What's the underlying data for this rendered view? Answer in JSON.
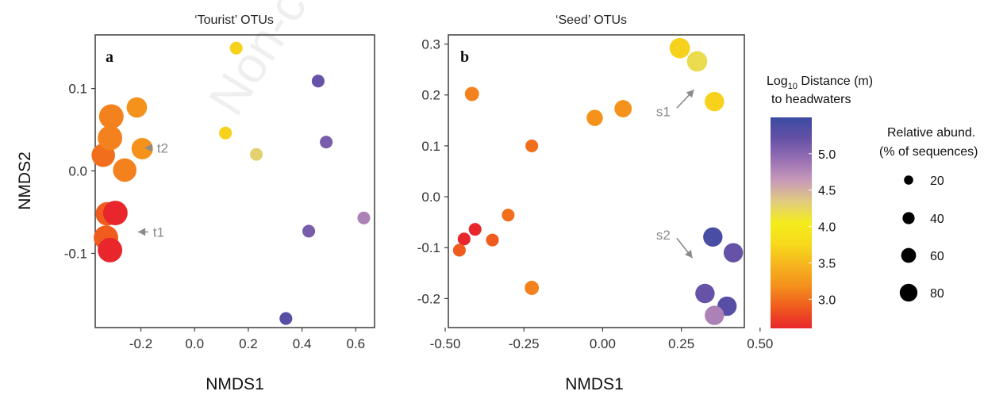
{
  "chart_data": [
    {
      "type": "scatter",
      "panel": "a",
      "title": "‘Tourist’ OTUs",
      "xlabel": "NMDS1",
      "ylabel": "NMDS2",
      "xlim": [
        -0.37,
        0.67
      ],
      "ylim": [
        -0.19,
        0.165
      ],
      "xticks": [
        -0.2,
        0.0,
        0.2,
        0.4,
        0.6
      ],
      "xtick_labels": [
        "-0.2",
        "0.0",
        "0.2",
        "0.4",
        "0.6"
      ],
      "yticks": [
        -0.1,
        0.0,
        0.1
      ],
      "ytick_labels": [
        "-0.1",
        "0.0",
        "0.1"
      ],
      "points": [
        {
          "x": 0.155,
          "y": 0.149,
          "log10_distance": 3.7,
          "abund": 8
        },
        {
          "x": 0.46,
          "y": 0.109,
          "log10_distance": 5.2,
          "abund": 8
        },
        {
          "x": 0.115,
          "y": 0.046,
          "log10_distance": 3.7,
          "abund": 8
        },
        {
          "x": 0.23,
          "y": 0.02,
          "log10_distance": 4.3,
          "abund": 8
        },
        {
          "x": 0.49,
          "y": 0.035,
          "log10_distance": 5.1,
          "abund": 8
        },
        {
          "x": 0.63,
          "y": -0.057,
          "log10_distance": 4.8,
          "abund": 8
        },
        {
          "x": 0.425,
          "y": -0.073,
          "log10_distance": 5.1,
          "abund": 8
        },
        {
          "x": 0.34,
          "y": -0.179,
          "log10_distance": 5.3,
          "abund": 8
        },
        {
          "x": -0.215,
          "y": 0.077,
          "log10_distance": 3.2,
          "abund": 45
        },
        {
          "x": -0.31,
          "y": 0.066,
          "log10_distance": 3.1,
          "abund": 65
        },
        {
          "x": -0.315,
          "y": 0.04,
          "log10_distance": 3.1,
          "abund": 65
        },
        {
          "x": -0.195,
          "y": 0.027,
          "log10_distance": 3.2,
          "abund": 50
        },
        {
          "x": -0.34,
          "y": 0.019,
          "log10_distance": 3.0,
          "abund": 60
        },
        {
          "x": -0.26,
          "y": 0.001,
          "log10_distance": 3.1,
          "abund": 60
        },
        {
          "x": -0.325,
          "y": -0.052,
          "log10_distance": 2.9,
          "abund": 60
        },
        {
          "x": -0.295,
          "y": -0.051,
          "log10_distance": 2.6,
          "abund": 65
        },
        {
          "x": -0.33,
          "y": -0.081,
          "log10_distance": 2.9,
          "abund": 65
        },
        {
          "x": -0.315,
          "y": -0.096,
          "log10_distance": 2.6,
          "abund": 65
        }
      ],
      "annotations": [
        {
          "label": "t2",
          "x": -0.14,
          "y": 0.028,
          "arrow_to_x": -0.185,
          "arrow_to_y": 0.028
        },
        {
          "label": "t1",
          "x": -0.155,
          "y": -0.074,
          "arrow_to_x": -0.21,
          "arrow_to_y": -0.074
        }
      ]
    },
    {
      "type": "scatter",
      "panel": "b",
      "title": "‘Seed’ OTUs",
      "xlabel": "NMDS1",
      "ylabel": "",
      "xlim": [
        -0.49,
        0.45
      ],
      "ylim": [
        -0.257,
        0.318
      ],
      "xticks": [
        -0.5,
        -0.25,
        0.0,
        0.25,
        0.5
      ],
      "xtick_labels": [
        "-0.50",
        "-0.25",
        "0.00",
        "0.25",
        "0.50"
      ],
      "yticks": [
        -0.2,
        -0.1,
        0.0,
        0.1,
        0.2,
        0.3
      ],
      "ytick_labels": [
        "-0.2",
        "-0.1",
        "0.0",
        "0.1",
        "0.2",
        "0.3"
      ],
      "points": [
        {
          "x": -0.415,
          "y": 0.202,
          "log10_distance": 3.1,
          "abund": 15
        },
        {
          "x": -0.025,
          "y": 0.155,
          "log10_distance": 3.2,
          "abund": 25
        },
        {
          "x": 0.065,
          "y": 0.173,
          "log10_distance": 3.2,
          "abund": 30
        },
        {
          "x": 0.245,
          "y": 0.292,
          "log10_distance": 3.7,
          "abund": 45
        },
        {
          "x": 0.3,
          "y": 0.266,
          "log10_distance": 4.2,
          "abund": 45
        },
        {
          "x": 0.355,
          "y": 0.187,
          "log10_distance": 3.7,
          "abund": 40
        },
        {
          "x": -0.225,
          "y": 0.1,
          "log10_distance": 3.0,
          "abund": 8
        },
        {
          "x": -0.3,
          "y": -0.036,
          "log10_distance": 3.0,
          "abund": 8
        },
        {
          "x": -0.405,
          "y": -0.064,
          "log10_distance": 2.6,
          "abund": 8
        },
        {
          "x": -0.44,
          "y": -0.083,
          "log10_distance": 2.6,
          "abund": 8
        },
        {
          "x": -0.35,
          "y": -0.085,
          "log10_distance": 2.9,
          "abund": 8
        },
        {
          "x": -0.455,
          "y": -0.105,
          "log10_distance": 2.9,
          "abund": 8
        },
        {
          "x": -0.225,
          "y": -0.179,
          "log10_distance": 3.1,
          "abund": 15
        },
        {
          "x": 0.35,
          "y": -0.079,
          "log10_distance": 5.4,
          "abund": 40
        },
        {
          "x": 0.415,
          "y": -0.11,
          "log10_distance": 5.2,
          "abund": 40
        },
        {
          "x": 0.325,
          "y": -0.19,
          "log10_distance": 5.2,
          "abund": 40
        },
        {
          "x": 0.395,
          "y": -0.215,
          "log10_distance": 5.3,
          "abund": 40
        },
        {
          "x": 0.355,
          "y": -0.233,
          "log10_distance": 4.8,
          "abund": 40
        }
      ],
      "annotations": [
        {
          "label": "s1",
          "x": 0.17,
          "y": 0.168,
          "arrow_to_x": 0.29,
          "arrow_to_y": 0.21
        },
        {
          "label": "s2",
          "x": 0.17,
          "y": -0.075,
          "arrow_to_x": 0.285,
          "arrow_to_y": -0.12
        }
      ]
    }
  ],
  "legend": {
    "color_title_pre": "Log",
    "color_title_sub": "10",
    "color_title_post": " Distance (m)",
    "color_title_line2": "to headwaters",
    "colorbar_range": [
      2.6,
      5.5
    ],
    "colorbar_ticks": [
      "5.0",
      "4.5",
      "4.0",
      "3.5",
      "3.0"
    ],
    "colorbar_tick_values": [
      5.0,
      4.5,
      4.0,
      3.5,
      3.0
    ],
    "size_title_line1": "Relative abund.",
    "size_title_line2": "(% of sequences)",
    "size_entries": [
      "20",
      "40",
      "60",
      "80"
    ],
    "size_entry_values": [
      20,
      40,
      60,
      80
    ]
  },
  "colors": {
    "scale": [
      "#e8262b",
      "#ef5a1e",
      "#f4901c",
      "#f6b41e",
      "#f7da1c",
      "#f4ec1c",
      "#e0cc7e",
      "#c79ab8",
      "#9870b4",
      "#6451a6",
      "#3b4ba2"
    ],
    "annotation": "#8a8a8a",
    "frame": "#3d3d3d"
  },
  "watermark": "Non-c"
}
